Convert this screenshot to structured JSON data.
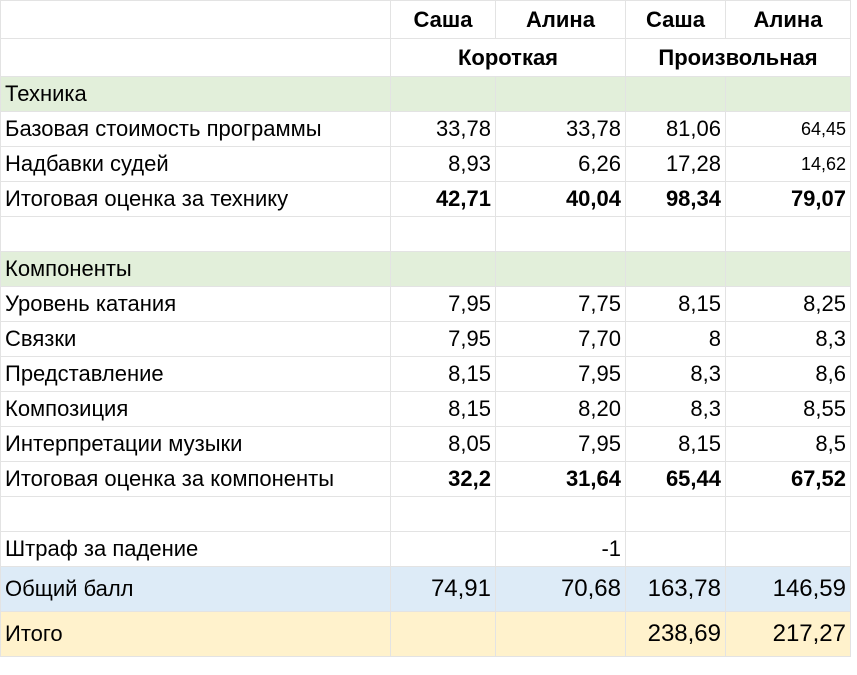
{
  "header": {
    "names": [
      "Саша",
      "Алина",
      "Саша",
      "Алина"
    ],
    "program_short": "Короткая",
    "program_free": "Произвольная"
  },
  "technique": {
    "section_title": "Техника",
    "rows": [
      {
        "label": "Базовая стоимость программы",
        "values": [
          "33,78",
          "33,78",
          "81,06",
          "64,45"
        ]
      },
      {
        "label": "Надбавки судей",
        "values": [
          "8,93",
          "6,26",
          "17,28",
          "14,62"
        ]
      },
      {
        "label": "Итоговая оценка за технику",
        "values": [
          "42,71",
          "40,04",
          "98,34",
          "79,07"
        ]
      }
    ]
  },
  "components": {
    "section_title": "Компоненты",
    "rows": [
      {
        "label": "Уровень катания",
        "values": [
          "7,95",
          "7,75",
          "8,15",
          "8,25"
        ]
      },
      {
        "label": "Связки",
        "values": [
          "7,95",
          "7,70",
          "8",
          "8,3"
        ]
      },
      {
        "label": "Представление",
        "values": [
          "8,15",
          "7,95",
          "8,3",
          "8,6"
        ]
      },
      {
        "label": "Композиция",
        "values": [
          "8,15",
          "8,20",
          "8,3",
          "8,55"
        ]
      },
      {
        "label": "Интерпретации музыки",
        "values": [
          "8,05",
          "7,95",
          "8,15",
          "8,5"
        ]
      },
      {
        "label": "Итоговая оценка за компоненты",
        "values": [
          "32,2",
          "31,64",
          "65,44",
          "67,52"
        ]
      }
    ]
  },
  "penalty": {
    "label": "Штраф за падение",
    "value": "-1"
  },
  "total_score": {
    "label": "Общий балл",
    "values": [
      "74,91",
      "70,68",
      "163,78",
      "146,59"
    ]
  },
  "final": {
    "label": "Итого",
    "values": [
      "238,69",
      "217,27"
    ]
  },
  "colors": {
    "section_green": "#e2efda",
    "total_blue": "#ddebf7",
    "final_peach": "#fff2cc"
  }
}
